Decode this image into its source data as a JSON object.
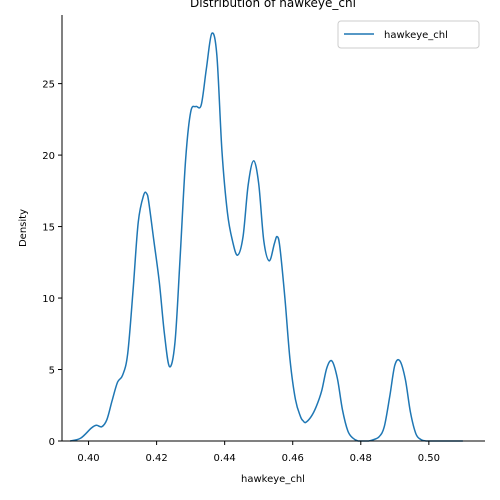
{
  "chart_data": {
    "type": "line",
    "title": "Distribution of hawkeye_chl",
    "xlabel": "hawkeye_chl",
    "ylabel": "Density",
    "xlim": [
      0.3922,
      0.5165
    ],
    "ylim": [
      0,
      29.8
    ],
    "x_ticks": [
      0.4,
      0.42,
      0.44,
      0.46,
      0.48,
      0.5
    ],
    "x_tick_labels": [
      "0.40",
      "0.42",
      "0.44",
      "0.46",
      "0.48",
      "0.50"
    ],
    "y_ticks": [
      0,
      5,
      10,
      15,
      20,
      25
    ],
    "y_tick_labels": [
      "0",
      "5",
      "10",
      "15",
      "20",
      "25"
    ],
    "grid": false,
    "legend_position": "top-right",
    "series": [
      {
        "name": "hawkeye_chl",
        "color": "#1f77b4",
        "x": [
          0.3946,
          0.3977,
          0.4008,
          0.4023,
          0.4039,
          0.4054,
          0.4069,
          0.4085,
          0.41,
          0.4115,
          0.4131,
          0.4146,
          0.4162,
          0.4171,
          0.4177,
          0.4192,
          0.4208,
          0.4223,
          0.4238,
          0.4254,
          0.4269,
          0.4285,
          0.43,
          0.4315,
          0.4331,
          0.4346,
          0.4362,
          0.4377,
          0.4392,
          0.4408,
          0.4423,
          0.4438,
          0.4454,
          0.4469,
          0.4485,
          0.45,
          0.4515,
          0.4531,
          0.4546,
          0.4554,
          0.4562,
          0.4577,
          0.4592,
          0.4608,
          0.4623,
          0.4631,
          0.4638,
          0.4654,
          0.4669,
          0.4685,
          0.47,
          0.4715,
          0.4731,
          0.4746,
          0.4762,
          0.4777,
          0.4792,
          0.4808,
          0.4823,
          0.4838,
          0.4854,
          0.4869,
          0.4885,
          0.49,
          0.4915,
          0.4931,
          0.4946,
          0.4962,
          0.4977,
          0.4992,
          0.5008,
          0.5023,
          0.5038,
          0.5054,
          0.5069,
          0.5085,
          0.51
        ],
        "y": [
          0.0,
          0.2,
          0.9,
          1.1,
          1.0,
          1.5,
          2.8,
          4.1,
          4.6,
          6.1,
          10.6,
          15.3,
          17.2,
          17.3,
          16.7,
          14.0,
          11.1,
          7.5,
          5.2,
          6.9,
          12.8,
          19.6,
          23.0,
          23.4,
          23.5,
          26.0,
          28.5,
          27.0,
          20.3,
          16.0,
          14.0,
          13.0,
          14.3,
          17.9,
          19.6,
          18.0,
          14.0,
          12.6,
          13.8,
          14.3,
          13.6,
          10.0,
          5.7,
          2.9,
          1.7,
          1.4,
          1.3,
          1.7,
          2.4,
          3.5,
          5.1,
          5.6,
          4.4,
          2.2,
          0.7,
          0.2,
          0.0,
          0.0,
          0.0,
          0.1,
          0.3,
          1.0,
          3.1,
          5.3,
          5.6,
          4.3,
          2.0,
          0.5,
          0.1,
          0.0,
          0.0,
          0.0,
          0.0,
          0.0,
          0.0,
          0.0,
          0.0
        ]
      }
    ]
  }
}
